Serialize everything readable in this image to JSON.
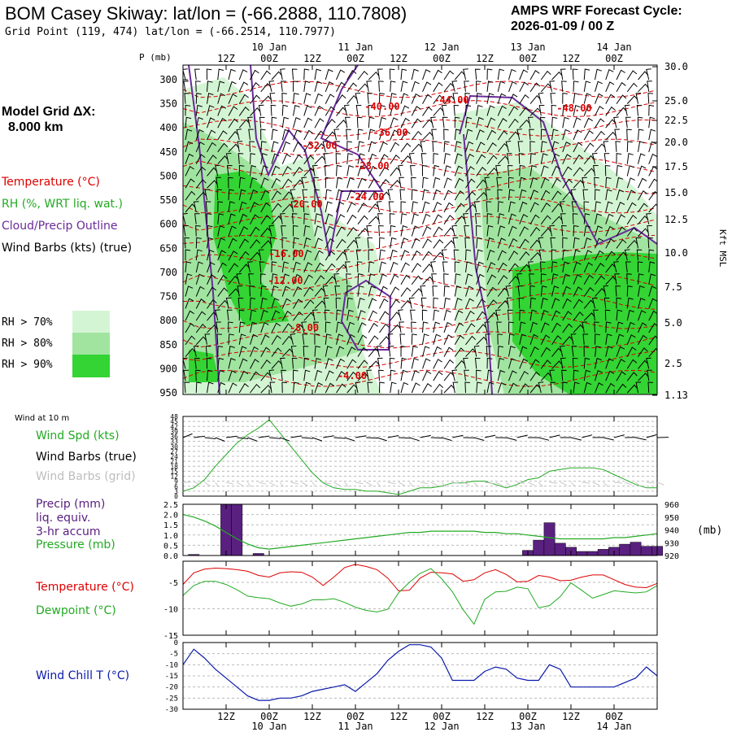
{
  "header": {
    "title": "BOM Casey Skiway:  lat/lon = (-66.2888, 110.7808)",
    "subtitle": "Grid Point (119, 474) lat/lon = (-66.2514, 110.7977)",
    "cycle_line1": "AMPS WRF Forecast Cycle:",
    "cycle_line2": "2026-01-09 / 00  Z",
    "grid_label_line1": "Model Grid ΔX:",
    "grid_label_line2": "8.000 km"
  },
  "colors": {
    "temperature": "#dd0000",
    "rh": "#22aa22",
    "cloud": "#6a2a9a",
    "precip": "#5a2080",
    "windchill": "#0a1aaa",
    "rh70": "#d4f5d4",
    "rh80": "#a0e4a0",
    "rh90": "#33d433"
  },
  "time_axis": {
    "top_labels": [
      "12Z",
      "00Z",
      "12Z",
      "00Z",
      "12Z",
      "00Z",
      "12Z",
      "00Z",
      "12Z",
      "00Z"
    ],
    "date_labels": [
      "10 Jan",
      "11 Jan",
      "12 Jan",
      "13 Jan",
      "14 Jan"
    ]
  },
  "legend": {
    "temperature": "Temperature (°C)",
    "rh": "RH (%, WRT liq. wat.)",
    "cloud": "Cloud/Precip Outline",
    "wind": "Wind Barbs (kts) (true)",
    "rh70": "RH > 70%",
    "rh80": "RH > 80%",
    "rh90": "RH > 90%"
  },
  "chart_data": [
    {
      "type": "heatmap",
      "name": "time-height cross section",
      "ylabel": "P (mb)",
      "ylabel_right": "Kft MSL",
      "y_ticks": [
        "300",
        "350",
        "400",
        "450",
        "500",
        "550",
        "600",
        "650",
        "700",
        "750",
        "800",
        "850",
        "900",
        "950"
      ],
      "y_ticks_right": [
        "30.0",
        "25.0",
        "22.5",
        "20.0",
        "17.5",
        "15.0",
        "12.5",
        "10.0",
        "7.5",
        "5.0",
        "2.5",
        "1.13"
      ],
      "temperature_labels": [
        "-40.00",
        "-44.00",
        "-48.00",
        "-36.00",
        "-32.00",
        "-28.00",
        "-24.00",
        "-20.00",
        "-16.00",
        "-12.00",
        "-8.00",
        "-4.00"
      ]
    },
    {
      "type": "line",
      "name": "wind at 10 m",
      "heading": "Wind at 10 m",
      "legend": [
        "Wind Spd (kts)",
        "Wind Barbs (true)",
        "Wind Barbs (grid)"
      ],
      "y_ticks": [
        "48",
        "45",
        "42",
        "39",
        "36",
        "33",
        "30",
        "27",
        "24",
        "21",
        "18",
        "15",
        "12",
        "9",
        "6",
        "3",
        "0"
      ],
      "ylim": [
        0,
        48
      ],
      "series": [
        {
          "name": "Wind Spd (kts)",
          "values": [
            3,
            5,
            10,
            18,
            25,
            32,
            37,
            41,
            46,
            38,
            30,
            22,
            14,
            8,
            5,
            4,
            4,
            3,
            3,
            2,
            1,
            3,
            5,
            5,
            6,
            8,
            8,
            9,
            9,
            7,
            5,
            7,
            10,
            11,
            15,
            16,
            17,
            17,
            17,
            16,
            13,
            10,
            7,
            5,
            5
          ]
        }
      ]
    },
    {
      "type": "bar",
      "name": "precip and pressure",
      "legend": [
        "Precip (mm)",
        "liq. equiv.",
        "3-hr accum",
        "Pressure (mb)"
      ],
      "y_ticks": [
        "2.5",
        "2.0",
        "1.5",
        "1.0",
        "0.5",
        "0.0"
      ],
      "y_ticks_right": [
        "960",
        "950",
        "940",
        "930",
        "920"
      ],
      "ylabel_right": "(mb)",
      "ylim": [
        0,
        2.5
      ],
      "y2lim": [
        920,
        960
      ],
      "precip": [
        0,
        0.05,
        0,
        0,
        2.5,
        2.5,
        0,
        0.1,
        0,
        0,
        0,
        0,
        0,
        0,
        0,
        0,
        0,
        0,
        0,
        0,
        0,
        0,
        0,
        0,
        0,
        0,
        0,
        0,
        0,
        0,
        0,
        0,
        0.25,
        0.75,
        1.6,
        0.6,
        0.4,
        0.2,
        0.2,
        0.3,
        0.4,
        0.55,
        0.65,
        0.45,
        0.45
      ],
      "pressure": [
        952,
        950,
        947,
        943,
        938,
        933,
        929,
        926,
        925,
        926,
        927,
        928,
        929,
        930,
        931,
        932,
        933,
        934,
        935,
        936,
        937,
        938,
        938,
        939,
        939,
        939,
        939,
        939,
        938,
        938,
        937,
        937,
        936,
        935,
        934,
        933,
        933,
        933,
        933,
        933,
        934,
        934,
        935,
        936,
        937
      ]
    },
    {
      "type": "line",
      "name": "temperature and dewpoint",
      "legend": [
        "Temperature (°C)",
        "Dewpoint (°C)"
      ],
      "y_ticks": [
        "-5",
        "-10",
        "-15"
      ],
      "ylim": [
        -15,
        -1
      ],
      "series": [
        {
          "name": "Temperature (°C)",
          "values": [
            -5.4,
            -3.2,
            -2.5,
            -2.3,
            -2.4,
            -2.6,
            -2.9,
            -3.7,
            -4.0,
            -3.2,
            -3.0,
            -3.1,
            -4.0,
            -5.6,
            -4.0,
            -2.2,
            -1.6,
            -2.0,
            -2.6,
            -4.2,
            -6.6,
            -6.5,
            -4.2,
            -3.1,
            -3.2,
            -3.4,
            -4.8,
            -4.5,
            -3.2,
            -2.6,
            -3.5,
            -4.9,
            -4.8,
            -3.7,
            -4.0,
            -4.7,
            -4.6,
            -4.0,
            -3.6,
            -3.6,
            -4.5,
            -5.4,
            -5.9,
            -6.0,
            -5.2
          ]
        },
        {
          "name": "Dewpoint (°C)",
          "values": [
            -7.5,
            -5.6,
            -4.8,
            -4.8,
            -5.4,
            -6.4,
            -7.6,
            -7.9,
            -8.1,
            -8.9,
            -9.5,
            -9.1,
            -8.3,
            -8.3,
            -8.1,
            -8.8,
            -9.7,
            -10.3,
            -10.6,
            -10.1,
            -7.0,
            -5.0,
            -3.3,
            -2.4,
            -4.3,
            -6.8,
            -10.2,
            -12.9,
            -8.2,
            -6.8,
            -6.7,
            -5.9,
            -6.2,
            -9.8,
            -9.4,
            -7.7,
            -5.1,
            -6.5,
            -8.0,
            -7.3,
            -6.6,
            -6.8,
            -7.0,
            -6.8,
            -5.6
          ]
        }
      ]
    },
    {
      "type": "line",
      "name": "wind chill",
      "legend": [
        "Wind Chill T (°C)"
      ],
      "y_ticks": [
        "0",
        "-5",
        "-10",
        "-15",
        "-20",
        "-25",
        "-30"
      ],
      "ylim": [
        -30,
        0
      ],
      "series": [
        {
          "name": "Wind Chill T (°C)",
          "values": [
            -10,
            -3,
            -7,
            -12,
            -16,
            -20,
            -24,
            -26,
            -26,
            -25,
            -25,
            -24,
            -22,
            -21,
            -20,
            -19,
            -22,
            -18,
            -14,
            -8,
            -4,
            -1,
            -1,
            -2,
            -7,
            -17,
            -17,
            -17,
            -13,
            -11,
            -12,
            -16,
            -17,
            -17,
            -10,
            -12,
            -20,
            -20,
            -20,
            -20,
            -20,
            -18,
            -16,
            -11,
            -15
          ]
        }
      ]
    }
  ],
  "lower_labels": {
    "wind_heading": "Wind at 10 m",
    "wind_spd": "Wind Spd (kts)",
    "wind_true": "Wind Barbs (true)",
    "wind_grid": "Wind Barbs (grid)",
    "precip1": "Precip (mm)",
    "precip2": "liq. equiv.",
    "precip3": "3-hr accum",
    "pressure": "Pressure (mb)",
    "temperature": "Temperature (°C)",
    "dewpoint": "Dewpoint (°C)",
    "windchill": "Wind Chill T (°C)"
  }
}
